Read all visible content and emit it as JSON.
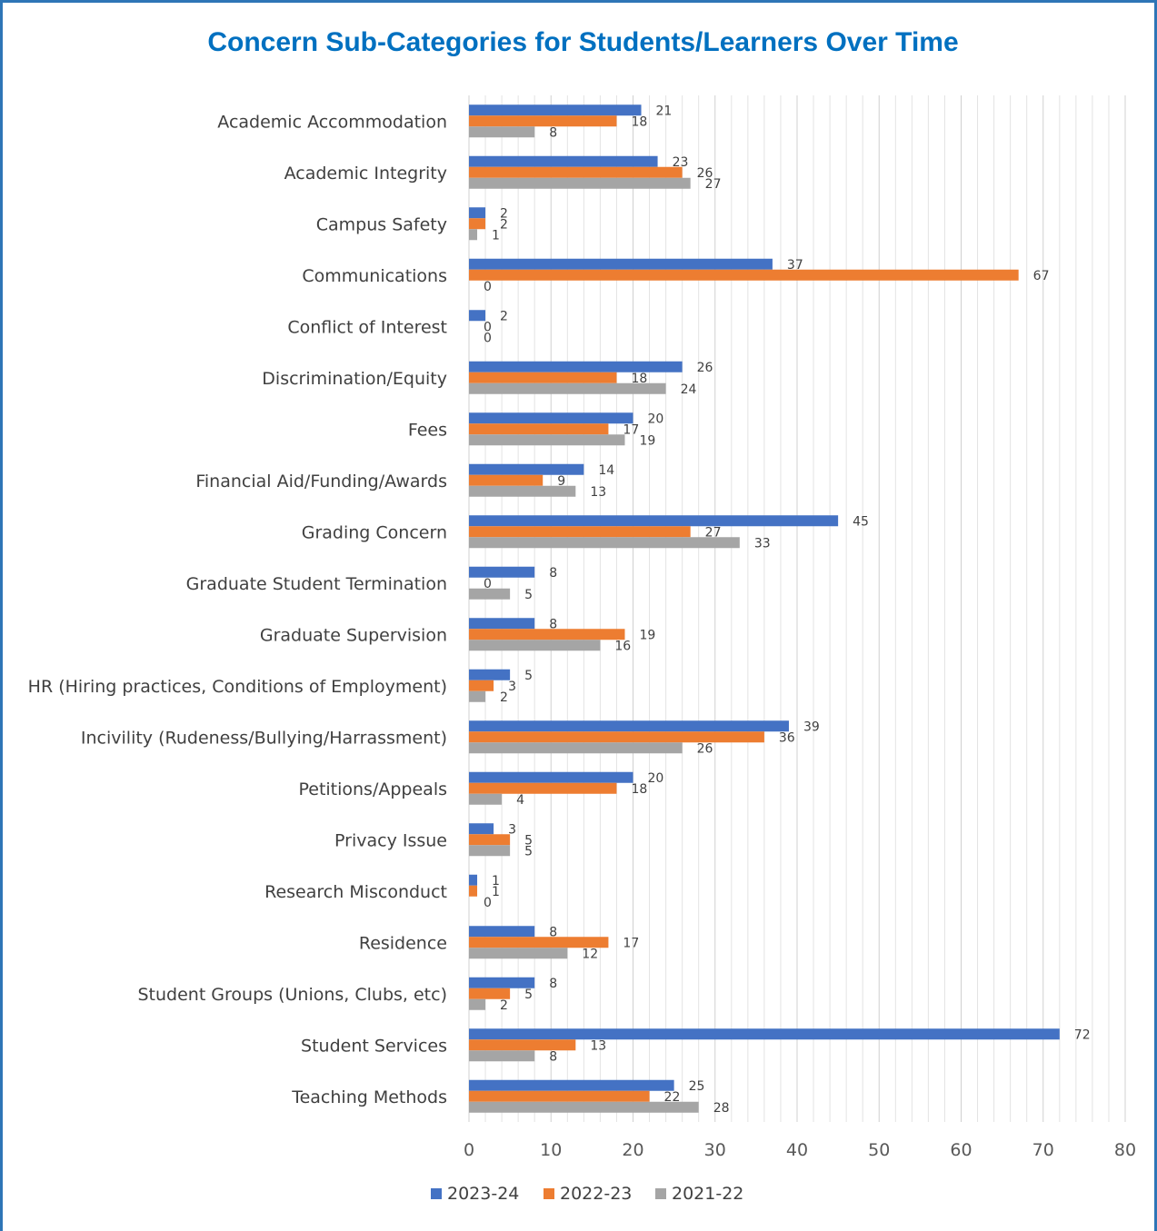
{
  "chart_data": {
    "type": "bar",
    "orientation": "horizontal",
    "title": "Concern Sub-Categories for Students/Learners Over Time",
    "xlim": [
      0,
      80
    ],
    "x_ticks": [
      "0",
      "10",
      "20",
      "30",
      "40",
      "50",
      "60",
      "70",
      "80"
    ],
    "grid": true,
    "legend_position": "bottom",
    "categories": [
      "Academic Accommodation",
      "Academic Integrity",
      "Campus Safety",
      "Communications",
      "Conflict of Interest",
      "Discrimination/Equity",
      "Fees",
      "Financial Aid/Funding/Awards",
      "Grading Concern",
      "Graduate Student Termination",
      "Graduate Supervision",
      "HR (Hiring practices, Conditions of Employment)",
      "Incivility (Rudeness/Bullying/Harrassment)",
      "Petitions/Appeals",
      "Privacy Issue",
      "Research Misconduct",
      "Residence",
      "Student Groups (Unions, Clubs, etc)",
      "Student Services",
      "Teaching Methods"
    ],
    "series": [
      {
        "name": "2023-24",
        "color": "#4472C4",
        "values": [
          21,
          23,
          2,
          37,
          2,
          26,
          20,
          14,
          45,
          8,
          8,
          5,
          39,
          20,
          3,
          1,
          8,
          8,
          72,
          25
        ]
      },
      {
        "name": "2022-23",
        "color": "#ED7D31",
        "values": [
          18,
          26,
          2,
          67,
          0,
          18,
          17,
          9,
          27,
          0,
          19,
          3,
          36,
          18,
          5,
          1,
          17,
          5,
          13,
          22
        ]
      },
      {
        "name": "2021-22",
        "color": "#A5A5A5",
        "values": [
          8,
          27,
          1,
          0,
          0,
          24,
          19,
          13,
          33,
          5,
          16,
          2,
          26,
          4,
          5,
          0,
          12,
          2,
          8,
          28
        ]
      }
    ]
  }
}
